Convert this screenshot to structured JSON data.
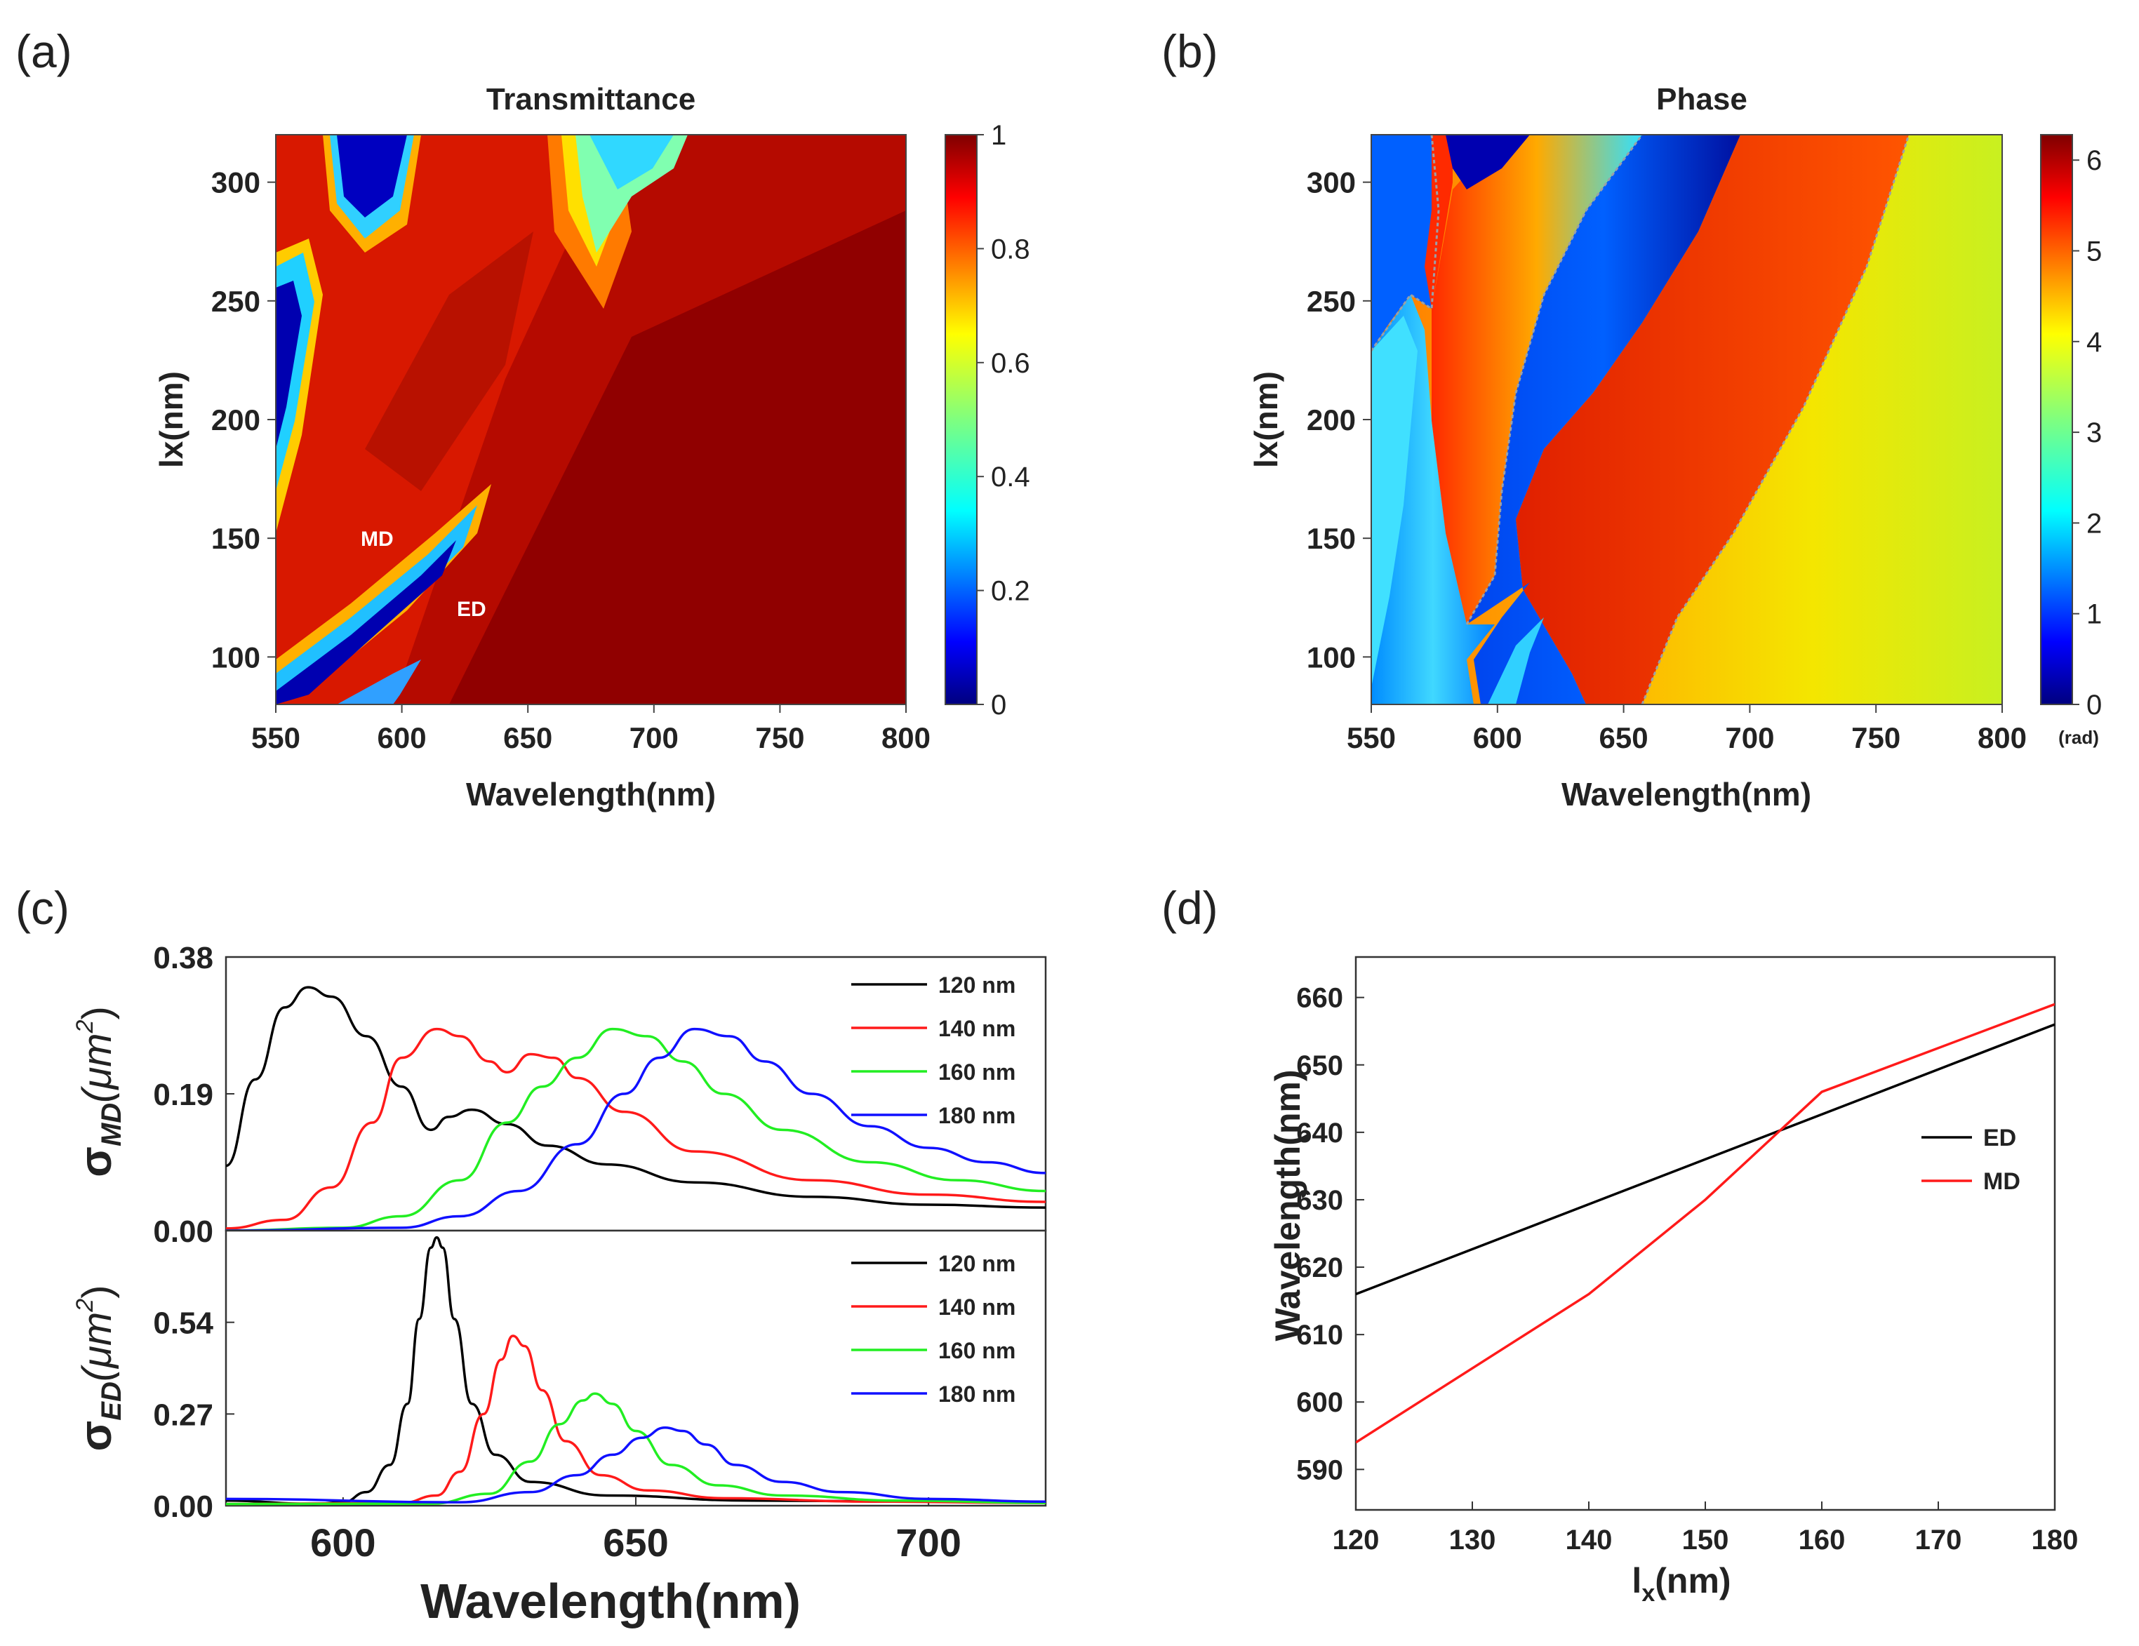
{
  "panels": {
    "a": "(a)",
    "b": "(b)",
    "c": "(c)",
    "d": "(d)"
  },
  "colors": {
    "black": "#000000",
    "red": "#ff1a1a",
    "green": "#22ee22",
    "blue": "#1010ff",
    "jet": [
      "#00007f",
      "#0000ff",
      "#007fff",
      "#00ffff",
      "#7fff7f",
      "#ffff00",
      "#ff7f00",
      "#ff0000",
      "#7f0000"
    ]
  },
  "chart_data": [
    {
      "id": "a",
      "type": "heatmap",
      "title": "Transmittance",
      "xlabel": "Wavelength(nm)",
      "ylabel": "lx(nm)",
      "xlim": [
        550,
        800
      ],
      "ylim": [
        80,
        320
      ],
      "xticks": [
        "550",
        "600",
        "650",
        "700",
        "750",
        "800"
      ],
      "yticks": [
        "100",
        "150",
        "200",
        "250",
        "300"
      ],
      "colorbar": {
        "range": [
          0,
          1
        ],
        "ticks": [
          "0",
          "0.2",
          "0.4",
          "0.6",
          "0.8",
          "1"
        ]
      },
      "annotations": [
        {
          "text": "MD",
          "x": 570,
          "y": 150
        },
        {
          "text": "ED",
          "x": 630,
          "y": 122
        }
      ]
    },
    {
      "id": "b",
      "type": "heatmap",
      "title": "Phase",
      "xlabel": "Wavelength(nm)",
      "ylabel": "lx(nm)",
      "xlim": [
        550,
        800
      ],
      "ylim": [
        80,
        320
      ],
      "xticks": [
        "550",
        "600",
        "650",
        "700",
        "750",
        "800"
      ],
      "yticks": [
        "100",
        "150",
        "200",
        "250",
        "300"
      ],
      "colorbar": {
        "range": [
          0,
          6.28
        ],
        "ticks": [
          "0",
          "1",
          "2",
          "3",
          "4",
          "5",
          "6"
        ],
        "unit": "(rad)"
      }
    },
    {
      "id": "c-top",
      "type": "line",
      "ylabel_main": "σ",
      "ylabel_sub": "MD",
      "ylabel_unit": "(μm",
      "ylabel_sup": "2",
      "ylabel_close": ")",
      "xlim": [
        580,
        720
      ],
      "ylim": [
        0,
        0.38
      ],
      "yticks": [
        "0.00",
        "0.19",
        "0.38"
      ],
      "series": [
        {
          "name": "120 nm",
          "color": "#000000",
          "x": [
            580,
            585,
            590,
            594,
            598,
            604,
            610,
            615,
            618,
            622,
            628,
            635,
            645,
            660,
            680,
            700,
            720
          ],
          "y": [
            0.09,
            0.21,
            0.31,
            0.338,
            0.325,
            0.27,
            0.2,
            0.14,
            0.158,
            0.168,
            0.148,
            0.118,
            0.092,
            0.067,
            0.047,
            0.036,
            0.032
          ]
        },
        {
          "name": "140 nm",
          "color": "#ff1a1a",
          "x": [
            580,
            590,
            598,
            605,
            610,
            616,
            620,
            625,
            628,
            632,
            636,
            640,
            648,
            660,
            680,
            700,
            720
          ],
          "y": [
            0.003,
            0.015,
            0.06,
            0.15,
            0.24,
            0.28,
            0.27,
            0.235,
            0.22,
            0.245,
            0.24,
            0.212,
            0.165,
            0.11,
            0.07,
            0.05,
            0.04
          ]
        },
        {
          "name": "160 nm",
          "color": "#22ee22",
          "x": [
            580,
            600,
            610,
            620,
            628,
            634,
            640,
            646,
            652,
            658,
            665,
            675,
            690,
            705,
            720
          ],
          "y": [
            0,
            0.004,
            0.02,
            0.07,
            0.15,
            0.2,
            0.24,
            0.28,
            0.27,
            0.235,
            0.19,
            0.14,
            0.095,
            0.07,
            0.055
          ]
        },
        {
          "name": "180 nm",
          "color": "#1010ff",
          "x": [
            580,
            610,
            620,
            630,
            640,
            648,
            654,
            660,
            666,
            672,
            680,
            690,
            700,
            710,
            720
          ],
          "y": [
            0,
            0.004,
            0.02,
            0.055,
            0.12,
            0.19,
            0.24,
            0.28,
            0.27,
            0.235,
            0.19,
            0.145,
            0.115,
            0.095,
            0.08
          ]
        }
      ]
    },
    {
      "id": "c-bottom",
      "type": "line",
      "ylabel_main": "σ",
      "ylabel_sub": "ED",
      "ylabel_unit": "(μm",
      "ylabel_sup": "2",
      "ylabel_close": ")",
      "xlabel": "Wavelength(nm)",
      "xlim": [
        580,
        720
      ],
      "ylim": [
        0,
        0.81
      ],
      "xticks": [
        "600",
        "650",
        "700"
      ],
      "xtick_values": [
        600,
        650,
        700
      ],
      "yticks": [
        "0.00",
        "0.27",
        "0.54"
      ],
      "series": [
        {
          "name": "120 nm",
          "color": "#000000",
          "x": [
            580,
            595,
            600,
            604,
            608,
            611,
            613,
            615,
            616,
            617,
            619,
            622,
            626,
            632,
            645,
            670,
            720
          ],
          "y": [
            0.015,
            0.005,
            0.01,
            0.04,
            0.12,
            0.3,
            0.55,
            0.76,
            0.79,
            0.76,
            0.55,
            0.3,
            0.15,
            0.07,
            0.03,
            0.015,
            0.01
          ]
        },
        {
          "name": "140 nm",
          "color": "#ff1a1a",
          "x": [
            580,
            610,
            616,
            620,
            624,
            627,
            629,
            631,
            634,
            638,
            644,
            652,
            665,
            690,
            720
          ],
          "y": [
            0.005,
            0.008,
            0.03,
            0.1,
            0.27,
            0.43,
            0.5,
            0.47,
            0.34,
            0.19,
            0.09,
            0.045,
            0.022,
            0.012,
            0.008
          ]
        },
        {
          "name": "160 nm",
          "color": "#22ee22",
          "x": [
            580,
            615,
            625,
            632,
            637,
            641,
            643,
            646,
            650,
            656,
            664,
            675,
            695,
            720
          ],
          "y": [
            0.005,
            0.006,
            0.035,
            0.13,
            0.24,
            0.31,
            0.33,
            0.3,
            0.22,
            0.12,
            0.06,
            0.03,
            0.015,
            0.008
          ]
        },
        {
          "name": "180 nm",
          "color": "#1010ff",
          "x": [
            580,
            620,
            632,
            640,
            646,
            651,
            655,
            658,
            662,
            667,
            675,
            685,
            700,
            720
          ],
          "y": [
            0.02,
            0.01,
            0.04,
            0.09,
            0.15,
            0.2,
            0.23,
            0.22,
            0.18,
            0.12,
            0.07,
            0.04,
            0.02,
            0.012
          ]
        }
      ]
    },
    {
      "id": "d",
      "type": "line",
      "xlabel_main": "l",
      "xlabel_sub": "x",
      "xlabel_unit": "(nm)",
      "ylabel": "Wavelength(nm)",
      "xlim": [
        120,
        180
      ],
      "ylim": [
        584,
        666
      ],
      "xticks": [
        "120",
        "130",
        "140",
        "150",
        "160",
        "170",
        "180"
      ],
      "xtick_values": [
        120,
        130,
        140,
        150,
        160,
        170,
        180
      ],
      "yticks": [
        "590",
        "600",
        "610",
        "620",
        "630",
        "640",
        "650",
        "660"
      ],
      "ytick_values": [
        590,
        600,
        610,
        620,
        630,
        640,
        650,
        660
      ],
      "series": [
        {
          "name": "ED",
          "color": "#000000",
          "x": [
            120,
            180
          ],
          "y": [
            616,
            656
          ]
        },
        {
          "name": "MD",
          "color": "#ff1a1a",
          "x": [
            120,
            140,
            150,
            160,
            170,
            180
          ],
          "y": [
            594,
            616,
            630,
            646,
            652.5,
            659
          ]
        }
      ]
    }
  ]
}
